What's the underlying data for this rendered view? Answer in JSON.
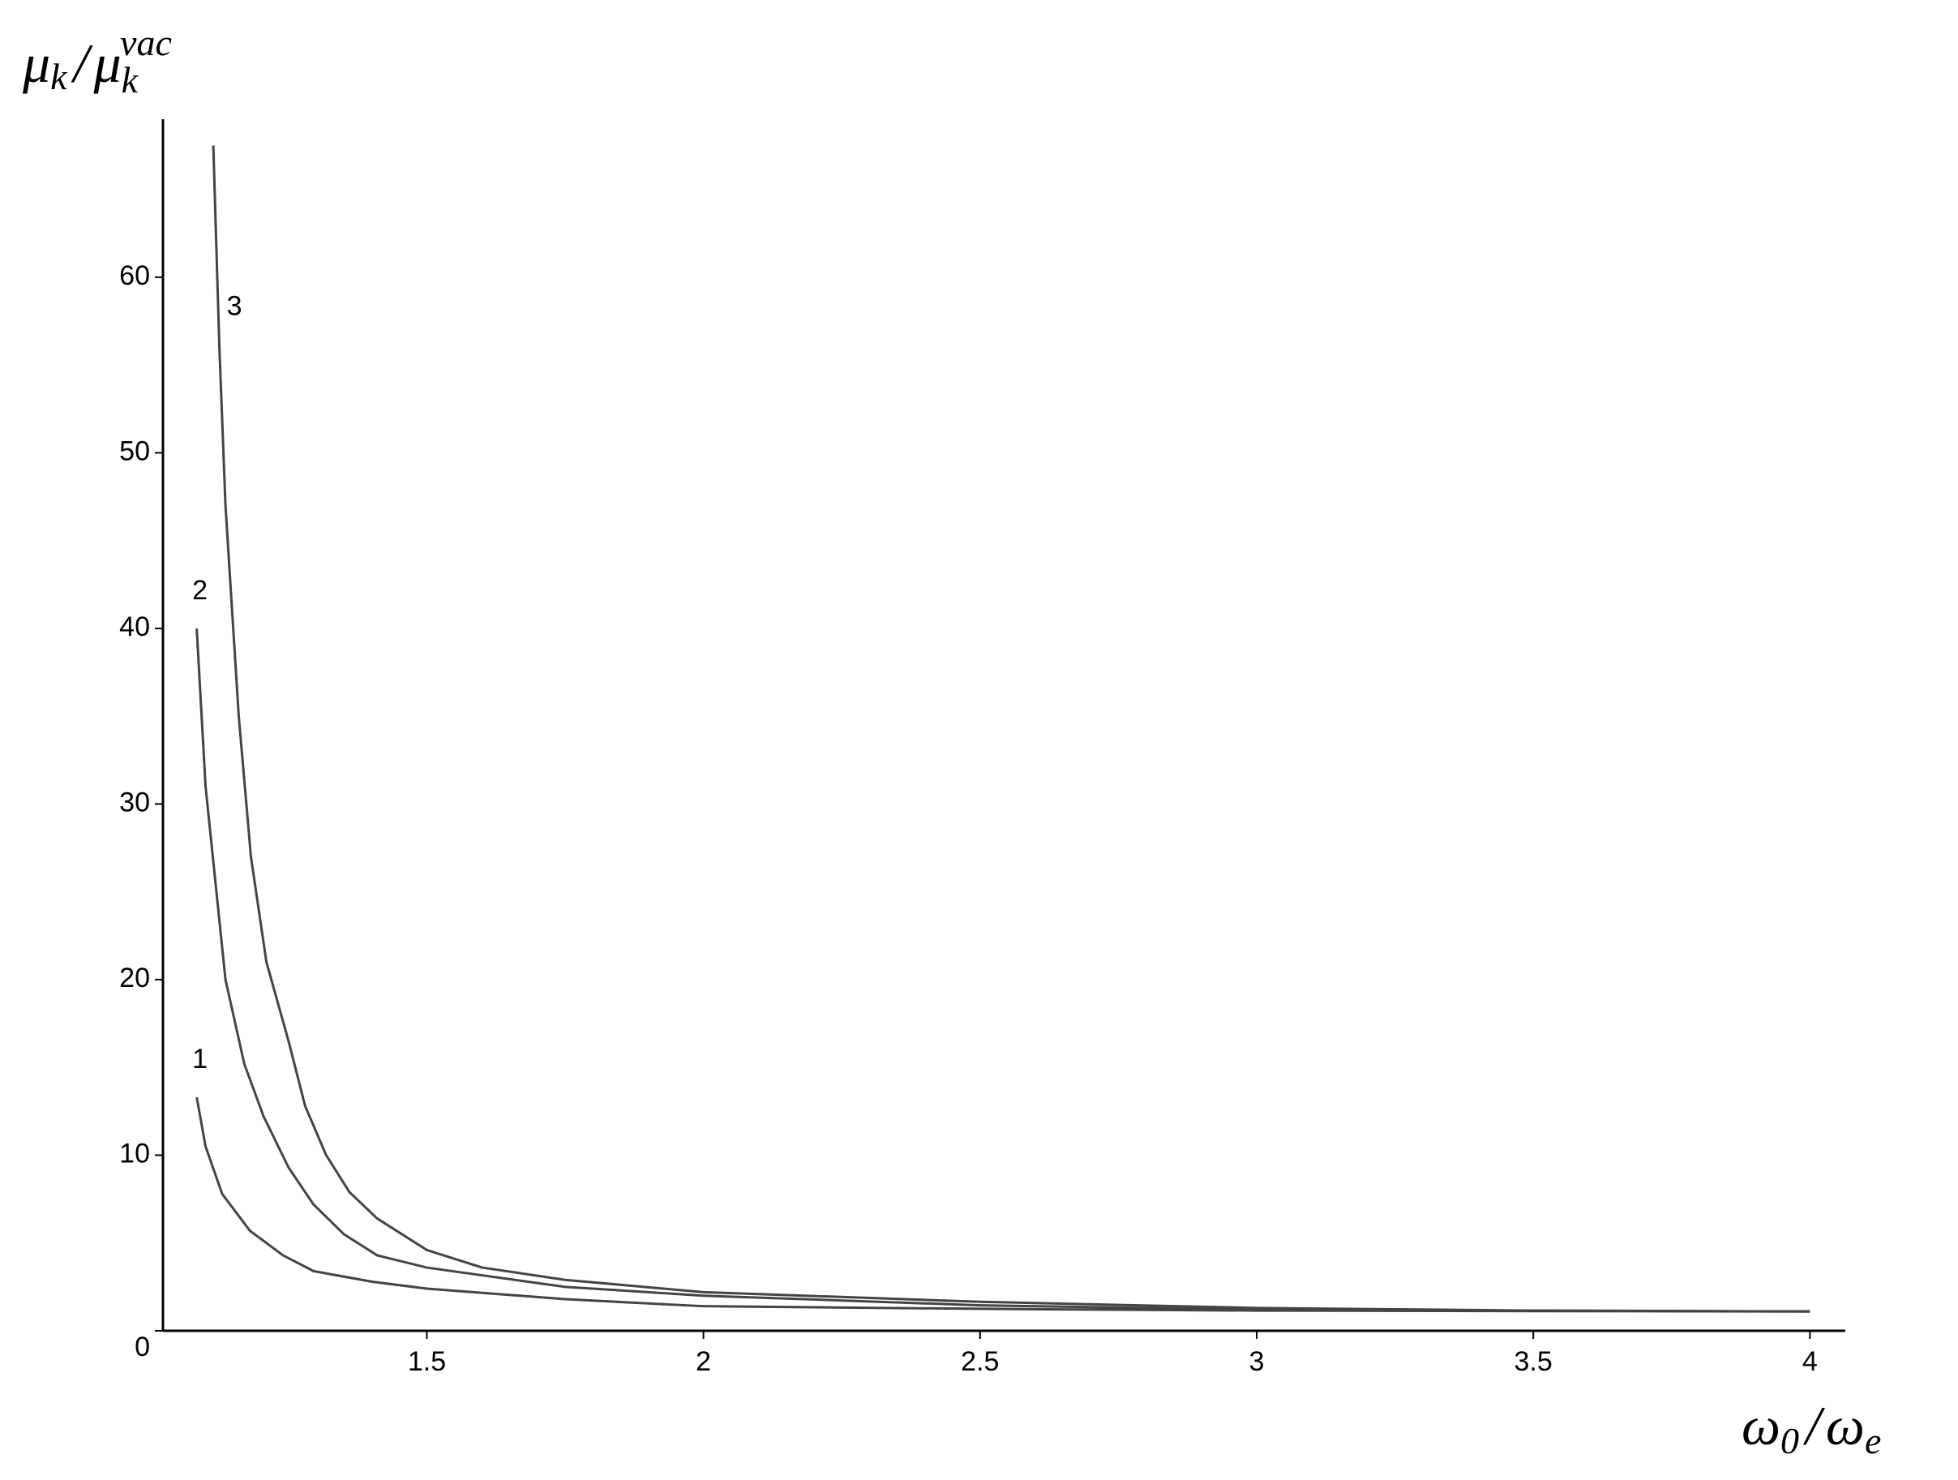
{
  "chart_data": {
    "type": "line",
    "y_label": [
      "μ",
      "k",
      "/",
      "μ",
      "k",
      "vac"
    ],
    "x_label": [
      "ω",
      "0",
      "/",
      "ω",
      "e"
    ],
    "xlim": [
      1.023,
      4.064
    ],
    "ylim": [
      0,
      69
    ],
    "xticks": [
      1.5,
      2,
      2.5,
      3,
      3.5,
      4
    ],
    "yticks": [
      0,
      10,
      20,
      30,
      40,
      50,
      60
    ],
    "grid": false,
    "series": [
      {
        "name": "1",
        "color": "#444444",
        "x": [
          1.084,
          1.1,
          1.13,
          1.18,
          1.24,
          1.295,
          1.4,
          1.5,
          1.75,
          2,
          2.5,
          3,
          3.5,
          4
        ],
        "values": [
          13.3,
          10.5,
          7.8,
          5.7,
          4.3,
          3.4,
          2.8,
          2.4,
          1.8,
          1.4,
          1.25,
          1.15,
          1.12,
          1.1
        ]
      },
      {
        "name": "2",
        "color": "#444444",
        "x": [
          1.084,
          1.1,
          1.136,
          1.17,
          1.205,
          1.25,
          1.295,
          1.35,
          1.41,
          1.5,
          1.75,
          2,
          2.5,
          3,
          3.5,
          4
        ],
        "values": [
          40,
          31,
          20,
          15.2,
          12.2,
          9.3,
          7.2,
          5.5,
          4.3,
          3.6,
          2.5,
          2.0,
          1.45,
          1.2,
          1.15,
          1.1
        ]
      },
      {
        "name": "3",
        "color": "#444444",
        "x": [
          1.114,
          1.125,
          1.136,
          1.16,
          1.182,
          1.21,
          1.25,
          1.28,
          1.318,
          1.36,
          1.41,
          1.5,
          1.6,
          1.75,
          2,
          2.5,
          3,
          3.5,
          4
        ],
        "values": [
          67.5,
          56,
          47,
          35,
          27,
          21,
          16.5,
          12.8,
          10,
          7.9,
          6.4,
          4.6,
          3.6,
          2.9,
          2.2,
          1.65,
          1.3,
          1.15,
          1.1
        ]
      }
    ]
  }
}
